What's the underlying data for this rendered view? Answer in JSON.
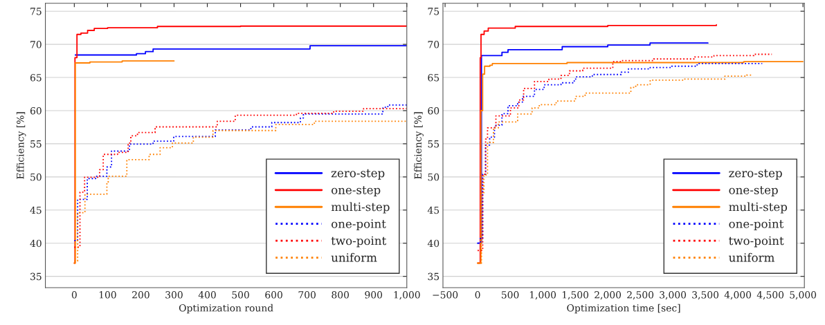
{
  "chart_data": [
    {
      "type": "step",
      "xlabel": "Optimization round",
      "ylabel": "Efficiency [%]",
      "xlim": [
        -87,
        1000
      ],
      "ylim": [
        33.3,
        76.2
      ],
      "xticks": [
        0,
        100,
        200,
        300,
        400,
        500,
        600,
        700,
        800,
        900,
        {
          "value": 1000,
          "label": "1,000"
        }
      ],
      "yticks": [
        35,
        40,
        45,
        50,
        55,
        60,
        65,
        70,
        75
      ],
      "grid": "y",
      "legend": "bottom right",
      "series": [
        {
          "name": "zero-step",
          "color": "#0000ff",
          "line_style": "solid",
          "x": [
            3,
            187,
            214,
            237,
            709,
            1000
          ],
          "values": [
            68.4,
            68.6,
            68.9,
            69.3,
            69.8,
            69.8
          ]
        },
        {
          "name": "one-step",
          "color": "#ff0000",
          "line_style": "solid",
          "x": [
            0,
            2,
            8,
            20,
            40,
            60,
            100,
            250,
            500,
            1000
          ],
          "values": [
            37,
            68,
            71.5,
            71.7,
            72.1,
            72.4,
            72.5,
            72.7,
            72.75,
            72.8
          ]
        },
        {
          "name": "multi-step",
          "color": "#ff8000",
          "line_style": "solid",
          "x": [
            0,
            3,
            47,
            144,
            300
          ],
          "values": [
            37,
            67.2,
            67.35,
            67.5,
            67.5
          ]
        },
        {
          "name": "one-point",
          "color": "#0000ff",
          "line_style": "dotted",
          "x": [
            0,
            10,
            39,
            64,
            98,
            112,
            166,
            237,
            299,
            424,
            531,
            594,
            680,
            689,
            928,
            943,
            1000
          ],
          "values": [
            40.4,
            46.6,
            49.75,
            50.1,
            51.5,
            53.9,
            54.95,
            55.4,
            56.1,
            57.1,
            57.55,
            58.2,
            58.9,
            59.5,
            60.5,
            60.85,
            60.85
          ]
        },
        {
          "name": "two-point",
          "color": "#ff0000",
          "line_style": "dotted",
          "x": [
            0,
            17,
            31,
            76,
            87,
            130,
            162,
            170,
            190,
            243,
            430,
            484,
            668,
            780,
            870,
            1000
          ],
          "values": [
            39.4,
            47.7,
            49.95,
            51.1,
            53.4,
            53.7,
            55.1,
            56.2,
            56.7,
            57.55,
            58.4,
            59.3,
            59.6,
            59.9,
            60.3,
            60.3
          ]
        },
        {
          "name": "uniform",
          "color": "#ff8000",
          "line_style": "dotted",
          "x": [
            0,
            10,
            32,
            98,
            102,
            158,
            225,
            258,
            295,
            358,
            417,
            606,
            722,
            1000
          ],
          "values": [
            37.3,
            44.6,
            47.4,
            49.05,
            50.1,
            52.6,
            53.4,
            54.4,
            55.1,
            56.0,
            57.0,
            57.9,
            58.4,
            58.4
          ]
        }
      ]
    },
    {
      "type": "step",
      "xlabel": "Optimization time [sec]",
      "ylabel": "Efficiency [%]",
      "xlim": [
        -533,
        5022
      ],
      "ylim": [
        33.3,
        76.2
      ],
      "xticks": [
        {
          "value": -500,
          "label": "−500"
        },
        0,
        500,
        {
          "value": 1000,
          "label": "1,000"
        },
        {
          "value": 1500,
          "label": "1,500"
        },
        {
          "value": 2000,
          "label": "2,000"
        },
        {
          "value": 2500,
          "label": "2,500"
        },
        {
          "value": 3000,
          "label": "3,000"
        },
        {
          "value": 3500,
          "label": "3,500"
        },
        {
          "value": 4000,
          "label": "4,000"
        },
        {
          "value": 4500,
          "label": "4,500"
        },
        {
          "value": 5000,
          "label": "5,000"
        }
      ],
      "yticks": [
        35,
        40,
        45,
        50,
        55,
        60,
        65,
        70,
        75
      ],
      "grid": "y",
      "legend": "bottom right",
      "series": [
        {
          "name": "zero-step",
          "color": "#0000ff",
          "line_style": "solid",
          "x": [
            0,
            59,
            374,
            467,
            1300,
            2000,
            2650,
            3540
          ],
          "values": [
            40,
            68.3,
            68.8,
            69.2,
            69.65,
            69.9,
            70.2,
            70.2
          ]
        },
        {
          "name": "one-step",
          "color": "#ff0000",
          "line_style": "solid",
          "x": [
            0,
            40,
            52,
            100,
            163,
            578,
            2000,
            3670
          ],
          "values": [
            37,
            68,
            71.5,
            72.0,
            72.45,
            72.7,
            72.85,
            72.95
          ]
        },
        {
          "name": "multi-step",
          "color": "#ff8000",
          "line_style": "solid",
          "x": [
            0,
            50,
            77,
            107,
            189,
            226,
            1374,
            4090,
            5000
          ],
          "values": [
            37,
            60,
            65.5,
            66.7,
            66.85,
            67.1,
            67.25,
            67.4,
            67.4
          ]
        },
        {
          "name": "one-point",
          "color": "#0000ff",
          "line_style": "dotted",
          "x": [
            0,
            41,
            78,
            122,
            185,
            259,
            281,
            374,
            467,
            615,
            689,
            874,
            1022,
            1281,
            1485,
            1522,
            1763,
            2207,
            2318,
            2652,
            2985,
            3374,
            4374
          ],
          "values": [
            40,
            40.7,
            50.4,
            54.8,
            56,
            57.45,
            57.8,
            59.55,
            60.75,
            61.3,
            62.15,
            63.2,
            63.9,
            64.2,
            64.75,
            65.1,
            65.45,
            65.8,
            66.3,
            66.5,
            66.7,
            67.1,
            67.1
          ]
        },
        {
          "name": "two-point",
          "color": "#ff0000",
          "line_style": "dotted",
          "x": [
            0,
            41,
            78,
            122,
            152,
            281,
            504,
            633,
            707,
            874,
            1096,
            1281,
            1411,
            1615,
            2078,
            2207,
            2707,
            3337,
            3633,
            4244,
            4522
          ],
          "values": [
            38.9,
            38.9,
            50.4,
            55.7,
            57.4,
            59.2,
            60.4,
            61.6,
            63.35,
            64.4,
            64.75,
            65.3,
            66.0,
            66.4,
            67.4,
            67.55,
            67.8,
            68.1,
            68.3,
            68.5,
            68.5
          ]
        },
        {
          "name": "uniform",
          "color": "#ff8000",
          "line_style": "dotted",
          "x": [
            0,
            59,
            96,
            152,
            244,
            319,
            615,
            837,
            948,
            1207,
            1504,
            1652,
            2355,
            2430,
            2652,
            3170,
            3800,
            4133,
            4207
          ],
          "values": [
            37,
            47.5,
            50.3,
            55.2,
            57.4,
            58.3,
            59.5,
            60.4,
            60.9,
            61.45,
            62.15,
            62.65,
            63.5,
            63.9,
            64.6,
            64.75,
            65.2,
            65.35,
            65.35
          ]
        }
      ]
    }
  ]
}
